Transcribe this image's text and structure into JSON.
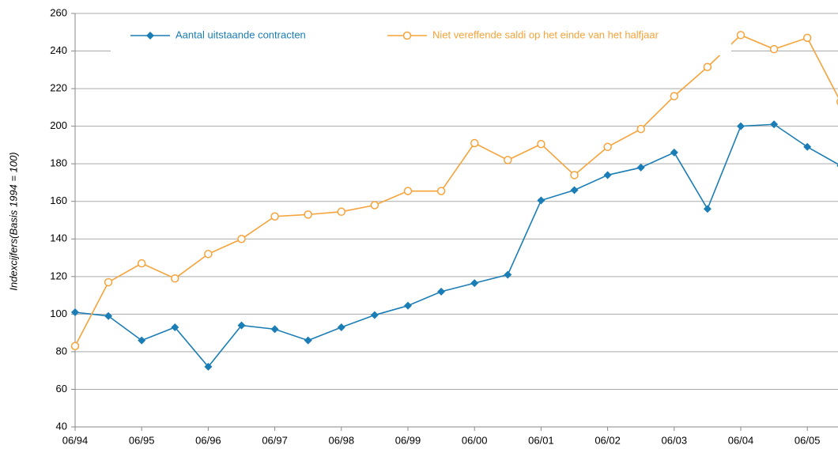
{
  "chart_data": {
    "type": "line",
    "y_label": "Indexcijfers(Basis 1994 = 100)",
    "categories": [
      "06/94",
      null,
      "06/95",
      null,
      "06/96",
      null,
      "06/97",
      null,
      "06/98",
      null,
      "06/99",
      null,
      "06/00",
      null,
      "06/01",
      null,
      "06/02",
      null,
      "06/03",
      null,
      "06/04",
      null,
      "06/05",
      null
    ],
    "series": [
      {
        "name": "Aantal uitstaande contracten",
        "color": "#1b7db5",
        "values": [
          101,
          99,
          86,
          93,
          72,
          94,
          92,
          86,
          93,
          99.5,
          104.5,
          112,
          116.5,
          121,
          160.5,
          166,
          174,
          178,
          186,
          156,
          200,
          201,
          189,
          179
        ]
      },
      {
        "name": "Niet vereffende saldi op het einde van het halfjaar",
        "color": "#f5a33a",
        "values": [
          83,
          117,
          127,
          119,
          132,
          140,
          152,
          153,
          154.5,
          158,
          165.5,
          165.5,
          191,
          182,
          190.5,
          174,
          189,
          198.5,
          216,
          231.5,
          248.5,
          241,
          247,
          213
        ]
      }
    ],
    "ylim": [
      40,
      260
    ],
    "yticks": [
      40,
      60,
      80,
      100,
      120,
      140,
      160,
      180,
      200,
      220,
      240,
      260
    ],
    "grid": true,
    "legend": "top"
  }
}
